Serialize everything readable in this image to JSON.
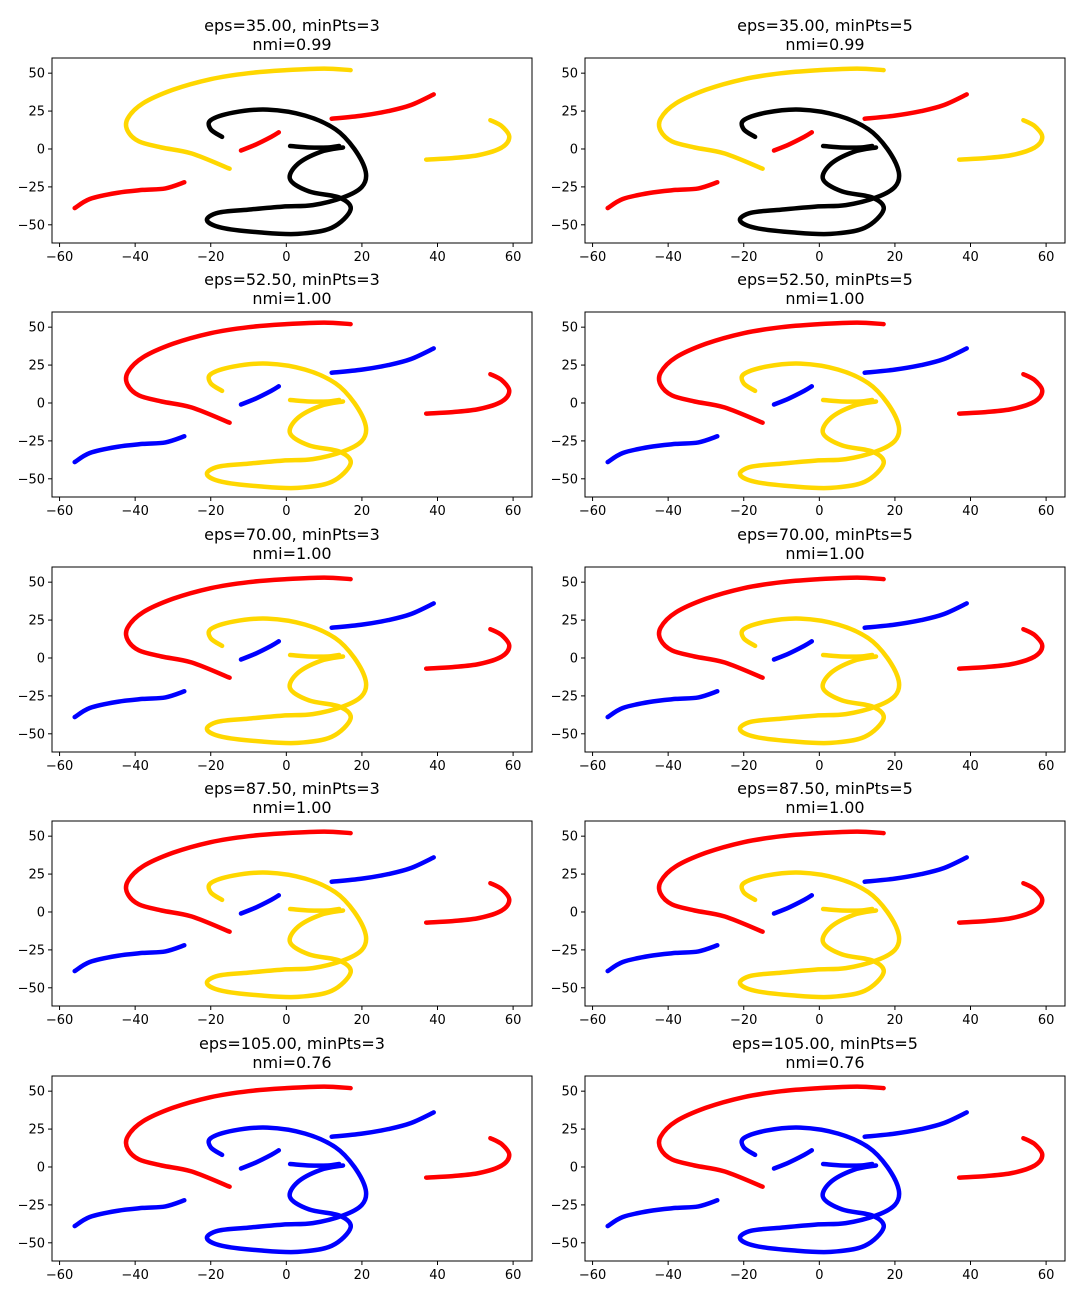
{
  "chart_data": [
    {
      "type": "scatter",
      "title": "eps=35.00, minPts=3",
      "subtitle": "nmi=0.99",
      "xlim": [
        -62,
        65
      ],
      "ylim": [
        -62,
        60
      ],
      "xticks": [
        -60,
        -40,
        -20,
        0,
        20,
        40,
        60
      ],
      "yticks": [
        -50,
        -25,
        0,
        25,
        50
      ],
      "colors": {
        "big_arc": "#ffd700",
        "right_hook": "#ffd700",
        "top_right_stroke": "#ff0000",
        "small_diag": "#ff0000",
        "bottom_left_stroke": "#ff0000",
        "three_shape": "#000000"
      }
    },
    {
      "type": "scatter",
      "title": "eps=35.00, minPts=5",
      "subtitle": "nmi=0.99",
      "xlim": [
        -62,
        65
      ],
      "ylim": [
        -62,
        60
      ],
      "xticks": [
        -60,
        -40,
        -20,
        0,
        20,
        40,
        60
      ],
      "yticks": [
        -50,
        -25,
        0,
        25,
        50
      ],
      "colors": {
        "big_arc": "#ffd700",
        "right_hook": "#ffd700",
        "top_right_stroke": "#ff0000",
        "small_diag": "#ff0000",
        "bottom_left_stroke": "#ff0000",
        "three_shape": "#000000"
      }
    },
    {
      "type": "scatter",
      "title": "eps=52.50, minPts=3",
      "subtitle": "nmi=1.00",
      "xlim": [
        -62,
        65
      ],
      "ylim": [
        -62,
        60
      ],
      "xticks": [
        -60,
        -40,
        -20,
        0,
        20,
        40,
        60
      ],
      "yticks": [
        -50,
        -25,
        0,
        25,
        50
      ],
      "colors": {
        "big_arc": "#ff0000",
        "right_hook": "#ff0000",
        "top_right_stroke": "#0000ff",
        "small_diag": "#0000ff",
        "bottom_left_stroke": "#0000ff",
        "three_shape": "#ffd700"
      }
    },
    {
      "type": "scatter",
      "title": "eps=52.50, minPts=5",
      "subtitle": "nmi=1.00",
      "xlim": [
        -62,
        65
      ],
      "ylim": [
        -62,
        60
      ],
      "xticks": [
        -60,
        -40,
        -20,
        0,
        20,
        40,
        60
      ],
      "yticks": [
        -50,
        -25,
        0,
        25,
        50
      ],
      "colors": {
        "big_arc": "#ff0000",
        "right_hook": "#ff0000",
        "top_right_stroke": "#0000ff",
        "small_diag": "#0000ff",
        "bottom_left_stroke": "#0000ff",
        "three_shape": "#ffd700"
      }
    },
    {
      "type": "scatter",
      "title": "eps=70.00, minPts=3",
      "subtitle": "nmi=1.00",
      "xlim": [
        -62,
        65
      ],
      "ylim": [
        -62,
        60
      ],
      "xticks": [
        -60,
        -40,
        -20,
        0,
        20,
        40,
        60
      ],
      "yticks": [
        -50,
        -25,
        0,
        25,
        50
      ],
      "colors": {
        "big_arc": "#ff0000",
        "right_hook": "#ff0000",
        "top_right_stroke": "#0000ff",
        "small_diag": "#0000ff",
        "bottom_left_stroke": "#0000ff",
        "three_shape": "#ffd700"
      }
    },
    {
      "type": "scatter",
      "title": "eps=70.00, minPts=5",
      "subtitle": "nmi=1.00",
      "xlim": [
        -62,
        65
      ],
      "ylim": [
        -62,
        60
      ],
      "xticks": [
        -60,
        -40,
        -20,
        0,
        20,
        40,
        60
      ],
      "yticks": [
        -50,
        -25,
        0,
        25,
        50
      ],
      "colors": {
        "big_arc": "#ff0000",
        "right_hook": "#ff0000",
        "top_right_stroke": "#0000ff",
        "small_diag": "#0000ff",
        "bottom_left_stroke": "#0000ff",
        "three_shape": "#ffd700"
      }
    },
    {
      "type": "scatter",
      "title": "eps=87.50, minPts=3",
      "subtitle": "nmi=1.00",
      "xlim": [
        -62,
        65
      ],
      "ylim": [
        -62,
        60
      ],
      "xticks": [
        -60,
        -40,
        -20,
        0,
        20,
        40,
        60
      ],
      "yticks": [
        -50,
        -25,
        0,
        25,
        50
      ],
      "colors": {
        "big_arc": "#ff0000",
        "right_hook": "#ff0000",
        "top_right_stroke": "#0000ff",
        "small_diag": "#0000ff",
        "bottom_left_stroke": "#0000ff",
        "three_shape": "#ffd700"
      }
    },
    {
      "type": "scatter",
      "title": "eps=87.50, minPts=5",
      "subtitle": "nmi=1.00",
      "xlim": [
        -62,
        65
      ],
      "ylim": [
        -62,
        60
      ],
      "xticks": [
        -60,
        -40,
        -20,
        0,
        20,
        40,
        60
      ],
      "yticks": [
        -50,
        -25,
        0,
        25,
        50
      ],
      "colors": {
        "big_arc": "#ff0000",
        "right_hook": "#ff0000",
        "top_right_stroke": "#0000ff",
        "small_diag": "#0000ff",
        "bottom_left_stroke": "#0000ff",
        "three_shape": "#ffd700"
      }
    },
    {
      "type": "scatter",
      "title": "eps=105.00, minPts=3",
      "subtitle": "nmi=0.76",
      "xlim": [
        -62,
        65
      ],
      "ylim": [
        -62,
        60
      ],
      "xticks": [
        -60,
        -40,
        -20,
        0,
        20,
        40,
        60
      ],
      "yticks": [
        -50,
        -25,
        0,
        25,
        50
      ],
      "colors": {
        "big_arc": "#ff0000",
        "right_hook": "#ff0000",
        "top_right_stroke": "#0000ff",
        "small_diag": "#0000ff",
        "bottom_left_stroke": "#0000ff",
        "three_shape": "#0000ff"
      }
    },
    {
      "type": "scatter",
      "title": "eps=105.00, minPts=5",
      "subtitle": "nmi=0.76",
      "xlim": [
        -62,
        65
      ],
      "ylim": [
        -62,
        60
      ],
      "xticks": [
        -60,
        -40,
        -20,
        0,
        20,
        40,
        60
      ],
      "yticks": [
        -50,
        -25,
        0,
        25,
        50
      ],
      "colors": {
        "big_arc": "#ff0000",
        "right_hook": "#ff0000",
        "top_right_stroke": "#0000ff",
        "small_diag": "#0000ff",
        "bottom_left_stroke": "#0000ff",
        "three_shape": "#0000ff"
      }
    }
  ],
  "shapes": {
    "big_arc": [
      [
        17,
        52
      ],
      [
        10,
        53
      ],
      [
        0,
        52
      ],
      [
        -10,
        50
      ],
      [
        -20,
        46
      ],
      [
        -30,
        39
      ],
      [
        -38,
        30
      ],
      [
        -42,
        20
      ],
      [
        -42,
        12
      ],
      [
        -39,
        5
      ],
      [
        -33,
        1
      ],
      [
        -25,
        -3
      ],
      [
        -15,
        -13
      ]
    ],
    "right_hook": [
      [
        54,
        19
      ],
      [
        57,
        15
      ],
      [
        59,
        8
      ],
      [
        57,
        1
      ],
      [
        51,
        -4
      ],
      [
        44,
        -6
      ],
      [
        37,
        -7
      ]
    ],
    "top_right_stroke": [
      [
        12,
        20
      ],
      [
        20,
        22
      ],
      [
        27,
        25
      ],
      [
        33,
        29
      ],
      [
        39,
        36
      ]
    ],
    "small_diag": [
      [
        -12,
        -1
      ],
      [
        -8,
        3
      ],
      [
        -4,
        8
      ],
      [
        -2,
        11
      ]
    ],
    "bottom_left_stroke": [
      [
        -56,
        -39
      ],
      [
        -52,
        -33
      ],
      [
        -45,
        -29
      ],
      [
        -38,
        -27
      ],
      [
        -32,
        -26
      ],
      [
        -27,
        -22
      ]
    ],
    "three_shape": [
      [
        -17,
        8
      ],
      [
        -20,
        13
      ],
      [
        -20,
        19
      ],
      [
        -14,
        24
      ],
      [
        -5,
        26
      ],
      [
        5,
        22
      ],
      [
        13,
        13
      ],
      [
        18,
        0
      ],
      [
        21,
        -15
      ],
      [
        20,
        -25
      ],
      [
        15,
        -32
      ],
      [
        7,
        -37
      ],
      [
        -1,
        -38
      ],
      [
        -10,
        -40
      ],
      [
        -18,
        -42
      ],
      [
        -21,
        -47
      ],
      [
        -17,
        -52
      ],
      [
        -7,
        -55
      ],
      [
        3,
        -56
      ],
      [
        12,
        -52
      ],
      [
        17,
        -40
      ],
      [
        14,
        -32
      ],
      [
        6,
        -28
      ],
      [
        1,
        -20
      ],
      [
        3,
        -10
      ],
      [
        9,
        -2
      ],
      [
        15,
        1
      ]
    ],
    "three_tail": [
      [
        1,
        2
      ],
      [
        6,
        1
      ],
      [
        11,
        1
      ],
      [
        14,
        2
      ]
    ]
  },
  "layout": {
    "cols": 2,
    "left": [
      52,
      585
    ],
    "width": 480,
    "top": [
      58,
      312,
      567,
      821,
      1076
    ],
    "height": 185
  }
}
